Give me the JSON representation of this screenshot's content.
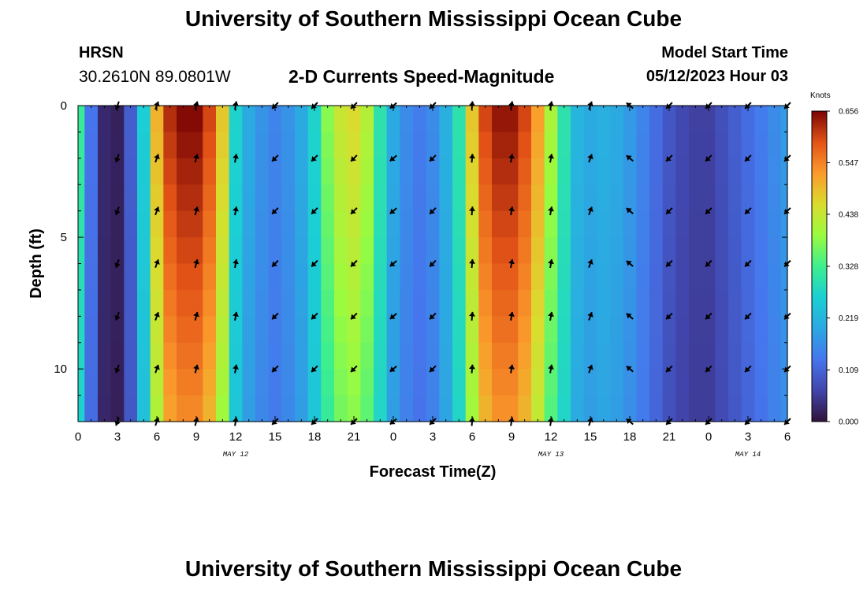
{
  "page": {
    "title_top": "University of Southern Mississippi Ocean Cube",
    "title_bottom": "University of Southern Mississippi Ocean Cube",
    "station": "HRSN",
    "coords": "30.2610N  89.0801W",
    "subtitle": "2-D Currents Speed-Magnitude",
    "model_start_label": "Model Start Time",
    "model_start_value": "05/12/2023 Hour 03"
  },
  "chart_data": {
    "type": "heatmap",
    "title": "2-D Currents Speed-Magnitude",
    "xlabel": "Forecast Time(Z)",
    "ylabel": "Depth (ft)",
    "x_unit": "hours since 00Z May 12",
    "xlim": [
      0,
      54
    ],
    "ylim": [
      0,
      12
    ],
    "x_ticks": [
      0,
      3,
      6,
      9,
      12,
      15,
      18,
      21,
      24,
      27,
      30,
      33,
      36,
      39,
      42,
      45,
      48,
      51,
      54
    ],
    "x_tick_labels": [
      "0",
      "3",
      "6",
      "9",
      "12",
      "15",
      "18",
      "21",
      "0",
      "3",
      "6",
      "9",
      "12",
      "15",
      "18",
      "21",
      "0",
      "3",
      "6"
    ],
    "y_ticks": [
      0,
      5,
      10
    ],
    "y_tick_labels": [
      "0",
      "5",
      "10"
    ],
    "date_labels": [
      {
        "x": 12,
        "text": "MAY 12"
      },
      {
        "x": 36,
        "text": "MAY 13"
      },
      {
        "x": 51,
        "text": "MAY 14"
      }
    ],
    "colorbar": {
      "unit": "Knots",
      "min": 0.0,
      "max": 0.656,
      "tick_values": [
        0.0,
        0.109,
        0.219,
        0.328,
        0.438,
        0.547,
        0.656
      ],
      "tick_labels": [
        "0.000",
        "0.109",
        "0.219",
        "0.328",
        "0.438",
        "0.547",
        "0.656"
      ]
    },
    "speed_profile_by_hour": {
      "hours": [
        0,
        1,
        2,
        3,
        4,
        5,
        6,
        7,
        8,
        9,
        10,
        11,
        12,
        13,
        14,
        15,
        16,
        17,
        18,
        19,
        20,
        21,
        22,
        23,
        24,
        25,
        26,
        27,
        28,
        29,
        30,
        31,
        32,
        33,
        34,
        35,
        36,
        37,
        38,
        39,
        40,
        41,
        42,
        43,
        44,
        45,
        46,
        47,
        48,
        49,
        50,
        51,
        52,
        53,
        54
      ],
      "speed_knots": [
        0.32,
        0.13,
        0.03,
        0.02,
        0.1,
        0.26,
        0.5,
        0.62,
        0.65,
        0.65,
        0.6,
        0.48,
        0.27,
        0.2,
        0.17,
        0.15,
        0.17,
        0.2,
        0.27,
        0.38,
        0.44,
        0.46,
        0.42,
        0.3,
        0.2,
        0.16,
        0.14,
        0.16,
        0.21,
        0.3,
        0.48,
        0.6,
        0.64,
        0.64,
        0.6,
        0.52,
        0.41,
        0.3,
        0.22,
        0.2,
        0.21,
        0.2,
        0.18,
        0.15,
        0.12,
        0.09,
        0.07,
        0.06,
        0.06,
        0.08,
        0.1,
        0.12,
        0.14,
        0.16,
        0.18
      ]
    },
    "depths_ft": [
      0,
      2,
      4,
      6,
      8,
      10,
      12
    ],
    "arrow_times": [
      3,
      6,
      9,
      12,
      15,
      18,
      21,
      24,
      27,
      30,
      33,
      36,
      39,
      42,
      45,
      48,
      51,
      54
    ],
    "arrow_direction_deg": [
      200,
      20,
      15,
      10,
      225,
      225,
      225,
      230,
      225,
      5,
      10,
      10,
      20,
      310,
      225,
      225,
      225,
      225
    ]
  }
}
